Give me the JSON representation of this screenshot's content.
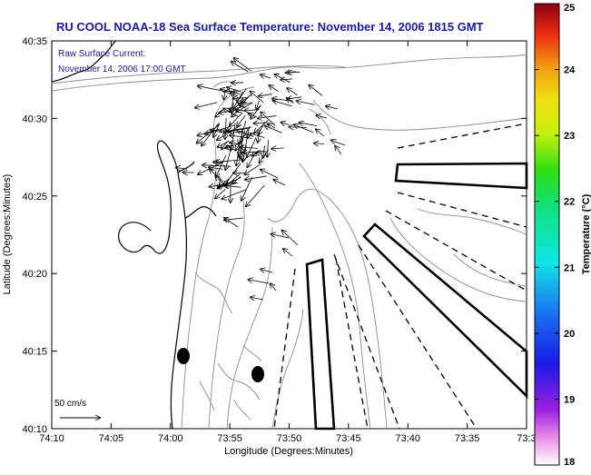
{
  "title": "RU COOL  NOAA-18  Sea Surface Temperature:  November 14, 2006 1815 GMT",
  "current_label": {
    "line1": "Raw Surface Current:",
    "line2": "November 14, 2006 17:00 GMT"
  },
  "axes": {
    "xlabel": "Longitude (Degrees:Minutes)",
    "ylabel": "Latitude (Degrees:Minutes)",
    "x_ticks": [
      "74:10",
      "74:05",
      "74:00",
      "73:55",
      "73:50",
      "73:45",
      "73:40",
      "73:35",
      "73:3"
    ],
    "y_ticks": [
      "40:35",
      "40:30",
      "40:25",
      "40:20",
      "40:15",
      "40:10"
    ]
  },
  "scale": {
    "label": "50 cm/s"
  },
  "colorbar": {
    "label": "Temperature (°C)",
    "ticks": [
      "25",
      "24",
      "23",
      "22",
      "21",
      "20",
      "19",
      "18"
    ],
    "min": 18,
    "max": 25
  },
  "colors": {
    "title": "#1a1aa0",
    "annotation": "#1a1aa0",
    "land": "#000000",
    "contour": "#8c8c8c",
    "vectors": "#000000"
  }
}
